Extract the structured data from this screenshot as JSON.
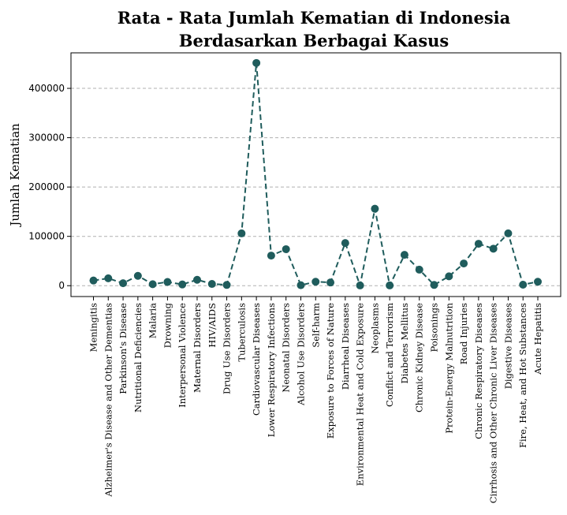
{
  "chart_data": {
    "type": "line",
    "title": [
      "Rata - Rata Jumlah Kematian di Indonesia",
      "Berdasarkan Berbagai Kasus"
    ],
    "xlabel": "",
    "ylabel": "Jumlah Kematian",
    "ylim": [
      -22000,
      472000
    ],
    "yticks": [
      0,
      100000,
      200000,
      300000,
      400000
    ],
    "ytick_labels": [
      "0",
      "100000",
      "200000",
      "300000",
      "400000"
    ],
    "grid": "y-dashed",
    "line_style": "dashed",
    "marker": "circle",
    "color": "#1f5c5c",
    "categories": [
      "Meningitis",
      "Alzheimer's Disease and Other Dementias",
      "Parkinson's Disease",
      "Nutritional Deficiencies",
      "Malaria",
      "Drowning",
      "Interpersonal Violence",
      "Maternal Disorders",
      "HIV/AIDS",
      "Drug Use Disorders",
      "Tuberculosis",
      "Cardiovascular Diseases",
      "Lower Respiratory Infections",
      "Neonatal Disorders",
      "Alcohol Use Disorders",
      "Self-harm",
      "Exposure to Forces of Nature",
      "Diarrheal Diseases",
      "Environmental Heat and Cold Exposure",
      "Neoplasms",
      "Conflict and Terrorism",
      "Diabetes Mellitus",
      "Chronic Kidney Disease",
      "Poisonings",
      "Protein-Energy Malnutrition",
      "Road Injuries",
      "Chronic Respiratory Diseases",
      "Cirrhosis and Other Chronic Liver Diseases",
      "Digestive Diseases",
      "Fire, Heat, and Hot Substances",
      "Acute Hepatitis"
    ],
    "values": [
      10500,
      15000,
      5000,
      20000,
      3000,
      7500,
      2500,
      12000,
      3500,
      1500,
      106000,
      451500,
      61000,
      74000,
      1000,
      8000,
      6500,
      86500,
      500,
      156000,
      500,
      62500,
      32500,
      1500,
      19000,
      45000,
      85000,
      75000,
      106000,
      2000,
      8000
    ]
  }
}
